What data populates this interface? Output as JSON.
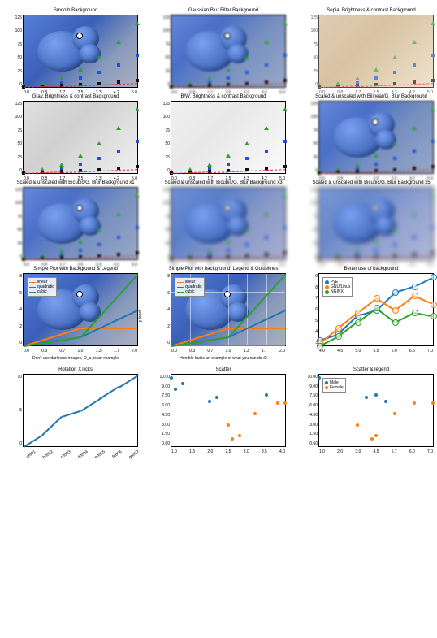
{
  "yvals_std": [
    0,
    25,
    50,
    75,
    100,
    125
  ],
  "xvals_std": [
    0.0,
    0.8,
    1.7,
    2.5,
    3.3,
    4.2,
    5.0
  ],
  "row1": [
    {
      "title": "Smooth Background",
      "bg": "bg-blue",
      "blob": true
    },
    {
      "title": "Gaussian Blur Filter Background",
      "bg": "bg-blur",
      "blob": true
    },
    {
      "title": "Sepia, Brightness & contrast Background",
      "bg": "bg-sepia",
      "blob": false
    }
  ],
  "row2": [
    {
      "title": "Gray, Brightness & contrast Background",
      "bg": "bg-gray",
      "blob": false
    },
    {
      "title": "B/W, Brightness & contrast Background",
      "bg": "bg-bw",
      "blob": false
    },
    {
      "title": "Scaled & unscaled with Bilinear/G. Blur Background",
      "bg": "bg-blur",
      "blob": true
    }
  ],
  "row3": [
    {
      "title": "Scaled & unscaled with Bicubic/G. Blur Background x1",
      "bg": "bg-blur",
      "blob": true
    },
    {
      "title": "Scaled & unscaled with Bicubic/G. Blur Background x3",
      "bg": "bg-blur2",
      "blob": true
    },
    {
      "title": "Scaled & unscaled with Bicubic/G. Blur Background x5",
      "bg": "bg-blur3",
      "blob": true
    }
  ],
  "series": {
    "green": {
      "color": "#2ca02c",
      "marker": "tri",
      "ys": [
        0,
        3,
        12,
        27,
        48,
        75,
        108
      ]
    },
    "blue": {
      "color": "#1f4fd8",
      "marker": "sq",
      "ys": [
        0,
        2,
        7,
        15,
        25,
        38,
        55
      ]
    },
    "black": {
      "color": "#111",
      "marker": "sq",
      "ys": [
        0,
        1,
        2.5,
        4,
        6,
        8.5,
        11
      ]
    },
    "red": {
      "color": "#d62728",
      "marker": "dash",
      "ys": [
        0,
        1,
        2,
        3,
        4,
        5,
        6
      ]
    }
  },
  "row4": [
    {
      "title": "Simple Plot with Background & Legend",
      "bg": "bg-blue",
      "blob": true,
      "xlabel": "Don't use darkness images, O_o, is an example",
      "legend": [
        "linear",
        "quadratic",
        "cubic"
      ],
      "ylim": [
        0,
        8
      ],
      "xlim": [
        0,
        2
      ],
      "yticks": [
        0,
        2,
        4,
        6,
        8
      ],
      "xticks": [
        "0.0",
        "0.3",
        "0.7",
        "1.0",
        "1.3",
        "1.7",
        "2.0"
      ]
    },
    {
      "title": "Simple Plot with background, Legend & Guidelines",
      "bg": "bg-blue",
      "blob": true,
      "grid": true,
      "xlabel": "Horrible but is an example of what you can do :D",
      "legend": [
        "linear",
        "quadratic",
        "cubic"
      ],
      "ylim": [
        0,
        8
      ],
      "xlim": [
        0,
        2
      ],
      "yticks": [
        0,
        2,
        4,
        6,
        8
      ],
      "xticks": [
        "0.0",
        "0.3",
        "0.7",
        "1.0",
        "1.3",
        "1.7",
        "2.0"
      ]
    },
    {
      "title": "Better use of background",
      "bg": "bg-white",
      "legend_items": [
        {
          "c": "#1f77b4",
          "t": "PyE"
        },
        {
          "c": "#ff7f0e",
          "t": "GNU/Linux"
        },
        {
          "c": "#2ca02c",
          "t": "NGINX"
        }
      ],
      "ylim": [
        3,
        9
      ],
      "xlim": [
        4,
        7
      ],
      "yticks": [
        3,
        4,
        5,
        6,
        7,
        8,
        9
      ],
      "xticks": [
        "4.0",
        "4.5",
        "5.0",
        "5.5",
        "6.0",
        "6.5",
        "7.0"
      ]
    }
  ],
  "row4_lines": [
    {
      "c": "#ff7f0e",
      "pts": [
        [
          0,
          0
        ],
        [
          1,
          2
        ],
        [
          2,
          2
        ]
      ]
    },
    {
      "c": "#1f77b4",
      "pts": [
        [
          0,
          0
        ],
        [
          1,
          1
        ],
        [
          2,
          4
        ]
      ]
    },
    {
      "c": "#2ca02c",
      "pts": [
        [
          0,
          0
        ],
        [
          1,
          1
        ],
        [
          2,
          8
        ]
      ]
    }
  ],
  "better_lines": [
    {
      "c": "#1f77b4",
      "pts": [
        [
          4,
          3.5
        ],
        [
          4.5,
          4
        ],
        [
          5,
          5.5
        ],
        [
          5.5,
          6
        ],
        [
          6,
          7.5
        ],
        [
          6.5,
          8
        ],
        [
          7,
          8.8
        ]
      ]
    },
    {
      "c": "#ff7f0e",
      "pts": [
        [
          4,
          3.2
        ],
        [
          4.5,
          4.5
        ],
        [
          5,
          5.8
        ],
        [
          5.5,
          7
        ],
        [
          6,
          6
        ],
        [
          6.5,
          7.2
        ],
        [
          7,
          6.5
        ]
      ]
    },
    {
      "c": "#2ca02c",
      "pts": [
        [
          4,
          3
        ],
        [
          4.5,
          3.8
        ],
        [
          5,
          5
        ],
        [
          5.5,
          6.2
        ],
        [
          6,
          5
        ],
        [
          6.5,
          5.8
        ],
        [
          7,
          5.5
        ]
      ]
    }
  ],
  "row5": [
    {
      "title": "Rotation XTicks",
      "ylim": [
        0,
        12
      ],
      "yticks": [
        0,
        5,
        10
      ],
      "xticks": [
        "ar001",
        "brt002",
        "crt003",
        "drt004",
        "ert005",
        "frt006",
        "grt007"
      ],
      "line_pts": [
        [
          0,
          0
        ],
        [
          1,
          2
        ],
        [
          2,
          5
        ],
        [
          3,
          6
        ],
        [
          4,
          8
        ],
        [
          5,
          10
        ],
        [
          6,
          12
        ]
      ],
      "rotate": true
    },
    {
      "title": "Scatter",
      "ylim": [
        0,
        10
      ],
      "yticks": [
        "0.60",
        "1.50",
        "3.00",
        "4.50",
        "6.00",
        "7.50",
        "9.00",
        "10.00"
      ],
      "xticks": [
        "1.0",
        "1.5",
        "2.0",
        "2.5",
        "3.0",
        "3.5",
        "4.0"
      ],
      "pts_blue": [
        [
          1.0,
          9.5
        ],
        [
          1.3,
          8.8
        ],
        [
          1.1,
          8.0
        ],
        [
          2.2,
          6.8
        ],
        [
          2.0,
          6.2
        ],
        [
          3.5,
          7.2
        ]
      ],
      "pts_org": [
        [
          2.5,
          3.0
        ],
        [
          2.8,
          1.5
        ],
        [
          2.6,
          1.0
        ],
        [
          3.2,
          4.5
        ],
        [
          4.0,
          6.0
        ],
        [
          3.8,
          6.0
        ]
      ]
    },
    {
      "title": "Scatter & legend",
      "ylim": [
        0,
        10
      ],
      "yticks": [
        "0.60",
        "1.50",
        "3.00",
        "4.50",
        "6.00",
        "7.50",
        "9.00",
        "10.00"
      ],
      "xticks": [
        "1.0",
        "2.0",
        "3.0",
        "4.5",
        "5.7",
        "6.0",
        "7.0"
      ],
      "legend": [
        {
          "c": "#1f77b4",
          "t": "Male"
        },
        {
          "c": "#ff7f0e",
          "t": "Female"
        }
      ],
      "pts_blue": [
        [
          1.0,
          9.5
        ],
        [
          1.3,
          8.8
        ],
        [
          3.5,
          6.8
        ],
        [
          4.5,
          6.2
        ],
        [
          4.0,
          7.2
        ]
      ],
      "pts_org": [
        [
          3.0,
          3.0
        ],
        [
          4.0,
          1.5
        ],
        [
          3.8,
          1.0
        ],
        [
          5.0,
          4.5
        ],
        [
          6.0,
          6.0
        ],
        [
          7.0,
          6.0
        ]
      ]
    }
  ]
}
